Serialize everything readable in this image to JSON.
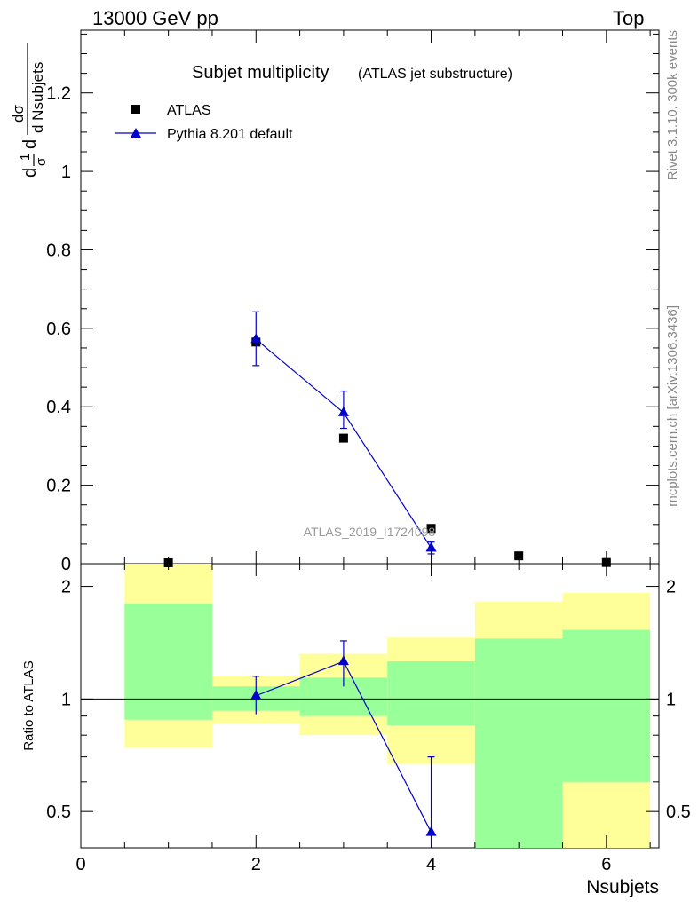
{
  "header": {
    "left": "13000 GeV pp",
    "right": "Top"
  },
  "side_text": {
    "rivet": "Rivet 3.1.10,  300k events",
    "mcplots": "mcplots.cern.ch [arXiv:1306.3436]"
  },
  "chart_data": [
    {
      "type": "scatter",
      "title": "Subjet multiplicity",
      "subtitle": "(ATLAS jet substructure)",
      "ylabel_parts": {
        "prefix": "1",
        "sigma": "σ",
        "d": "d",
        "num": "dσ",
        "den": "d Nsubjets"
      },
      "watermark": "ATLAS_2019_I1724098",
      "xlim": [
        0,
        6.6
      ],
      "ylim": [
        0,
        1.36
      ],
      "y_ticks": [
        0,
        0.2,
        0.4,
        0.6,
        0.8,
        1,
        1.2
      ],
      "y_tick_labels": [
        "0",
        "0.2",
        "0.4",
        "0.6",
        "0.8",
        "1",
        "1.2"
      ],
      "series": [
        {
          "name": "ATLAS",
          "marker": "square",
          "color": "#000000",
          "x": [
            1,
            2,
            3,
            4,
            5,
            6
          ],
          "y": [
            0.0,
            0.565,
            0.32,
            0.09,
            0.02,
            0.003
          ]
        },
        {
          "name": "Pythia 8.201 default",
          "marker": "triangle",
          "color": "#0000cc",
          "x": [
            2,
            3,
            4
          ],
          "y": [
            0.572,
            0.385,
            0.04
          ],
          "err_low": [
            0.505,
            0.345,
            0.025
          ],
          "err_high": [
            0.642,
            0.44,
            0.055
          ]
        }
      ]
    },
    {
      "type": "ratio",
      "ylabel": "Ratio to ATLAS",
      "xlabel": "Nsubjets",
      "log_y": true,
      "ylim": [
        0.4,
        2.3
      ],
      "y_ticks": [
        0.5,
        1,
        2
      ],
      "y_tick_labels": [
        "0.5",
        "1",
        "2"
      ],
      "x_ticks": [
        0,
        2,
        4,
        6
      ],
      "x_tick_labels": [
        "0",
        "2",
        "4",
        "6"
      ],
      "xlim": [
        0,
        6.6
      ],
      "bands": [
        {
          "x0": 0.5,
          "x1": 1.5,
          "green": [
            0.88,
            1.8
          ],
          "yellow": [
            0.74,
            2.3
          ]
        },
        {
          "x0": 1.5,
          "x1": 2.5,
          "green": [
            0.93,
            1.08
          ],
          "yellow": [
            0.86,
            1.15
          ]
        },
        {
          "x0": 2.5,
          "x1": 3.5,
          "green": [
            0.9,
            1.14
          ],
          "yellow": [
            0.8,
            1.32
          ]
        },
        {
          "x0": 3.5,
          "x1": 4.5,
          "green": [
            0.85,
            1.26
          ],
          "yellow": [
            0.67,
            1.46
          ]
        },
        {
          "x0": 4.5,
          "x1": 5.5,
          "green": [
            0.4,
            1.45
          ],
          "yellow": [
            0.4,
            1.82
          ]
        },
        {
          "x0": 5.5,
          "x1": 6.5,
          "green": [
            0.6,
            1.53
          ],
          "yellow": [
            0.4,
            1.92
          ]
        }
      ],
      "series": [
        {
          "name": "Pythia 8.201 default",
          "color": "#0000cc",
          "x": [
            2,
            3,
            4
          ],
          "y": [
            1.02,
            1.26,
            0.44
          ],
          "err_low": [
            0.91,
            1.08,
            0.4
          ],
          "err_high": [
            1.15,
            1.43,
            0.7
          ]
        }
      ]
    }
  ],
  "colors": {
    "green": "#99ff99",
    "yellow": "#ffff99",
    "pythia": "#0000cc",
    "watermark": "#999999",
    "side": "#888888"
  }
}
